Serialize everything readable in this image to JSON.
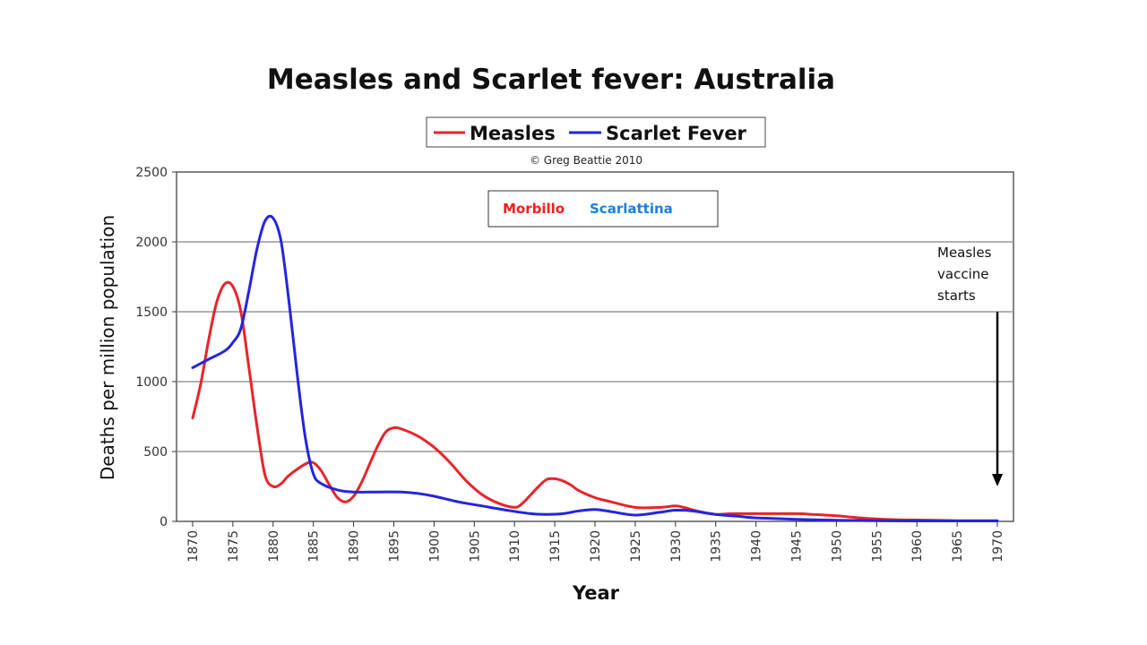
{
  "chart_data": {
    "type": "line",
    "title": "Measles and Scarlet fever: Australia",
    "copyright": "© Greg Beattie 2010",
    "xlabel": "Year",
    "ylabel": "Deaths per million population",
    "xlim": [
      1868,
      1972
    ],
    "ylim": [
      0,
      2500
    ],
    "yticks": [
      0,
      500,
      1000,
      1500,
      2000,
      2500
    ],
    "xticks": [
      1870,
      1875,
      1880,
      1885,
      1890,
      1895,
      1900,
      1905,
      1910,
      1915,
      1920,
      1925,
      1930,
      1935,
      1940,
      1945,
      1950,
      1955,
      1960,
      1965,
      1970
    ],
    "grid": "horizontal",
    "legend": {
      "placement": "top-center",
      "entries": [
        {
          "name": "Measles",
          "color": "#e8242a"
        },
        {
          "name": "Scarlet Fever",
          "color": "#2424e0"
        }
      ]
    },
    "inset_label": {
      "measles": "Morbillo",
      "scarlet": "Scarlattina",
      "measles_color": "#ff1a1a",
      "scarlet_color": "#1a7fe0"
    },
    "annotation": {
      "lines": [
        "Measles",
        "vaccine",
        "starts"
      ],
      "x": 1970,
      "arrow_from": 1500,
      "arrow_to": 250
    },
    "series": [
      {
        "name": "Measles",
        "color": "#e8242a",
        "x": [
          1870,
          1871,
          1872,
          1873,
          1874,
          1875,
          1876,
          1877,
          1878,
          1879,
          1880,
          1881,
          1882,
          1884,
          1885,
          1886,
          1887,
          1888,
          1889,
          1890,
          1891,
          1892,
          1893,
          1894,
          1895,
          1896,
          1898,
          1900,
          1902,
          1904,
          1906,
          1908,
          1910,
          1911,
          1912,
          1913,
          1914,
          1915,
          1916,
          1917,
          1918,
          1920,
          1922,
          1925,
          1928,
          1930,
          1931,
          1933,
          1935,
          1937,
          1940,
          1945,
          1947,
          1950,
          1953,
          1956,
          1959,
          1962,
          1965,
          1970
        ],
        "y": [
          740,
          980,
          1300,
          1570,
          1700,
          1680,
          1500,
          1100,
          680,
          330,
          250,
          270,
          330,
          410,
          420,
          360,
          260,
          170,
          140,
          180,
          280,
          410,
          540,
          640,
          670,
          660,
          610,
          530,
          420,
          290,
          190,
          130,
          100,
          130,
          190,
          250,
          300,
          305,
          290,
          260,
          220,
          170,
          140,
          100,
          100,
          110,
          100,
          70,
          50,
          55,
          55,
          55,
          50,
          40,
          25,
          15,
          10,
          8,
          5,
          5
        ]
      },
      {
        "name": "Scarlet Fever",
        "color": "#2424e0",
        "x": [
          1870,
          1872,
          1874,
          1875,
          1876,
          1877,
          1878,
          1879,
          1880,
          1881,
          1882,
          1883,
          1884,
          1885,
          1886,
          1888,
          1890,
          1893,
          1896,
          1898,
          1900,
          1903,
          1906,
          1909,
          1912,
          1914,
          1916,
          1918,
          1920,
          1922,
          1925,
          1928,
          1930,
          1932,
          1935,
          1938,
          1940,
          1945,
          1950,
          1955,
          1960,
          1965,
          1970
        ],
        "y": [
          1100,
          1160,
          1220,
          1280,
          1380,
          1650,
          1950,
          2150,
          2170,
          2000,
          1560,
          1050,
          600,
          340,
          270,
          225,
          210,
          210,
          210,
          200,
          180,
          140,
          110,
          80,
          55,
          50,
          55,
          75,
          85,
          70,
          45,
          65,
          80,
          75,
          50,
          35,
          25,
          15,
          8,
          5,
          3,
          3,
          3
        ]
      }
    ]
  }
}
